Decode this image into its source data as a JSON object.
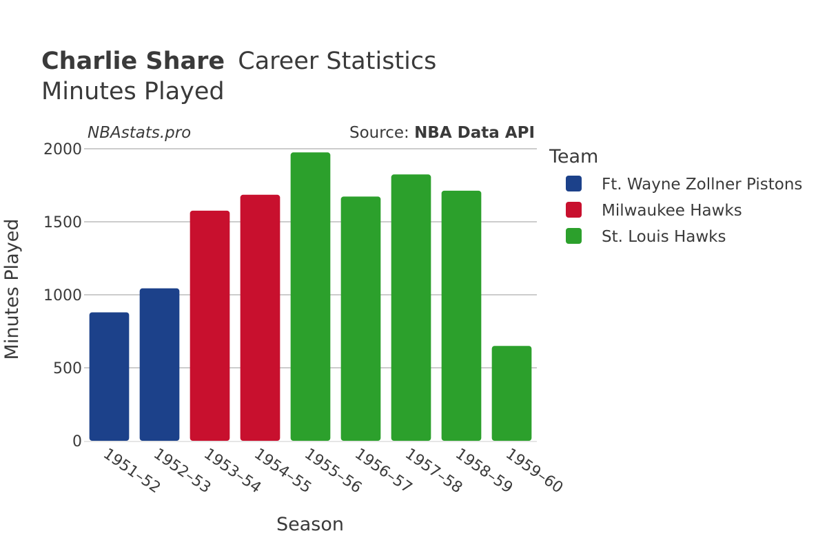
{
  "chart_data": {
    "type": "bar",
    "title": {
      "player": "Charlie Share",
      "suffix": "Career Statistics",
      "subtitle": "Minutes Played"
    },
    "watermark": "NBAstats.pro",
    "source": {
      "prefix": "Source: ",
      "name": "NBA Data API"
    },
    "xlabel": "Season",
    "ylabel": "Minutes Played",
    "ylim": [
      0,
      2000
    ],
    "yticks": [
      0,
      500,
      1000,
      1500,
      2000
    ],
    "categories": [
      "1951–52",
      "1952–53",
      "1953–54",
      "1954–55",
      "1955–56",
      "1956–57",
      "1957–58",
      "1958–59",
      "1959–60"
    ],
    "values": [
      880,
      1044,
      1576,
      1685,
      1975,
      1673,
      1824,
      1713,
      650
    ],
    "teams": [
      "Ft. Wayne Zollner Pistons",
      "Ft. Wayne Zollner Pistons",
      "Milwaukee Hawks",
      "Milwaukee Hawks",
      "St. Louis Hawks",
      "St. Louis Hawks",
      "St. Louis Hawks",
      "St. Louis Hawks",
      "St. Louis Hawks"
    ],
    "legend": {
      "title": "Team",
      "entries": [
        {
          "name": "Ft. Wayne Zollner Pistons",
          "color": "#1c418a"
        },
        {
          "name": "Milwaukee Hawks",
          "color": "#c8102e"
        },
        {
          "name": "St. Louis Hawks",
          "color": "#2ca02c"
        }
      ]
    },
    "grid": true
  }
}
